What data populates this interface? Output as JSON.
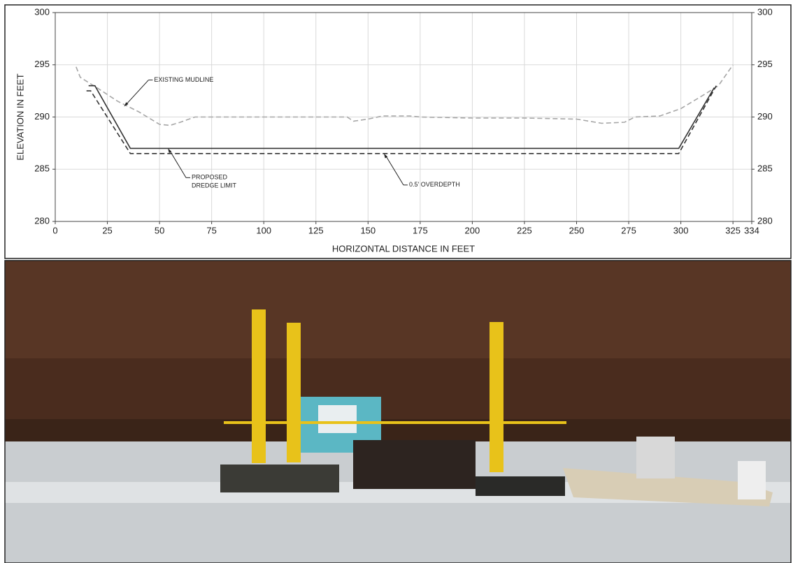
{
  "chart_data": {
    "type": "line",
    "xlabel": "HORIZONTAL DISTANCE IN FEET",
    "ylabel": "ELEVATION IN FEET",
    "xlim": [
      0,
      334
    ],
    "xticks": [
      0,
      25,
      50,
      75,
      100,
      125,
      150,
      175,
      200,
      225,
      250,
      275,
      300,
      325,
      334
    ],
    "ylim": [
      280,
      300
    ],
    "yticks": [
      280,
      285,
      290,
      295,
      300
    ],
    "y2lim": [
      280,
      300
    ],
    "y2ticks": [
      280,
      285,
      290,
      295,
      300
    ],
    "grid": true,
    "series": [
      {
        "color": "#a6a6a6",
        "dash": true,
        "x": [
          10,
          12,
          20,
          30,
          40,
          50,
          55,
          60,
          67,
          100,
          140,
          143,
          150,
          157,
          170,
          175,
          200,
          225,
          250,
          262,
          273,
          278,
          290,
          300,
          310,
          318,
          325
        ],
        "values": [
          294.8,
          293.8,
          292.8,
          291.5,
          290.5,
          289.3,
          289.2,
          289.5,
          290,
          290,
          290,
          289.6,
          289.8,
          290.1,
          290.1,
          290,
          289.9,
          289.9,
          289.8,
          289.4,
          289.5,
          290,
          290.1,
          290.8,
          292,
          293,
          295
        ]
      },
      {
        "color": "#333333",
        "dash": false,
        "x": [
          16,
          19,
          36,
          299,
          316
        ],
        "values": [
          293,
          293,
          287,
          287,
          292.8
        ]
      },
      {
        "color": "#333333",
        "dash": true,
        "x": [
          15,
          17,
          36,
          299,
          317
        ],
        "values": [
          292.5,
          292.5,
          286.5,
          286.5,
          293
        ]
      }
    ],
    "annotations": [
      {
        "lines": [
          "EXISTING MUDLINE"
        ],
        "x": 33,
        "y": 291
      },
      {
        "lines": [
          "PROPOSED",
          "DREDGE LIMIT"
        ],
        "x": 54,
        "y": 287
      },
      {
        "lines": [
          "0.5' OVERDEPTH"
        ],
        "x": 157.6,
        "y": 286.5
      }
    ]
  }
}
